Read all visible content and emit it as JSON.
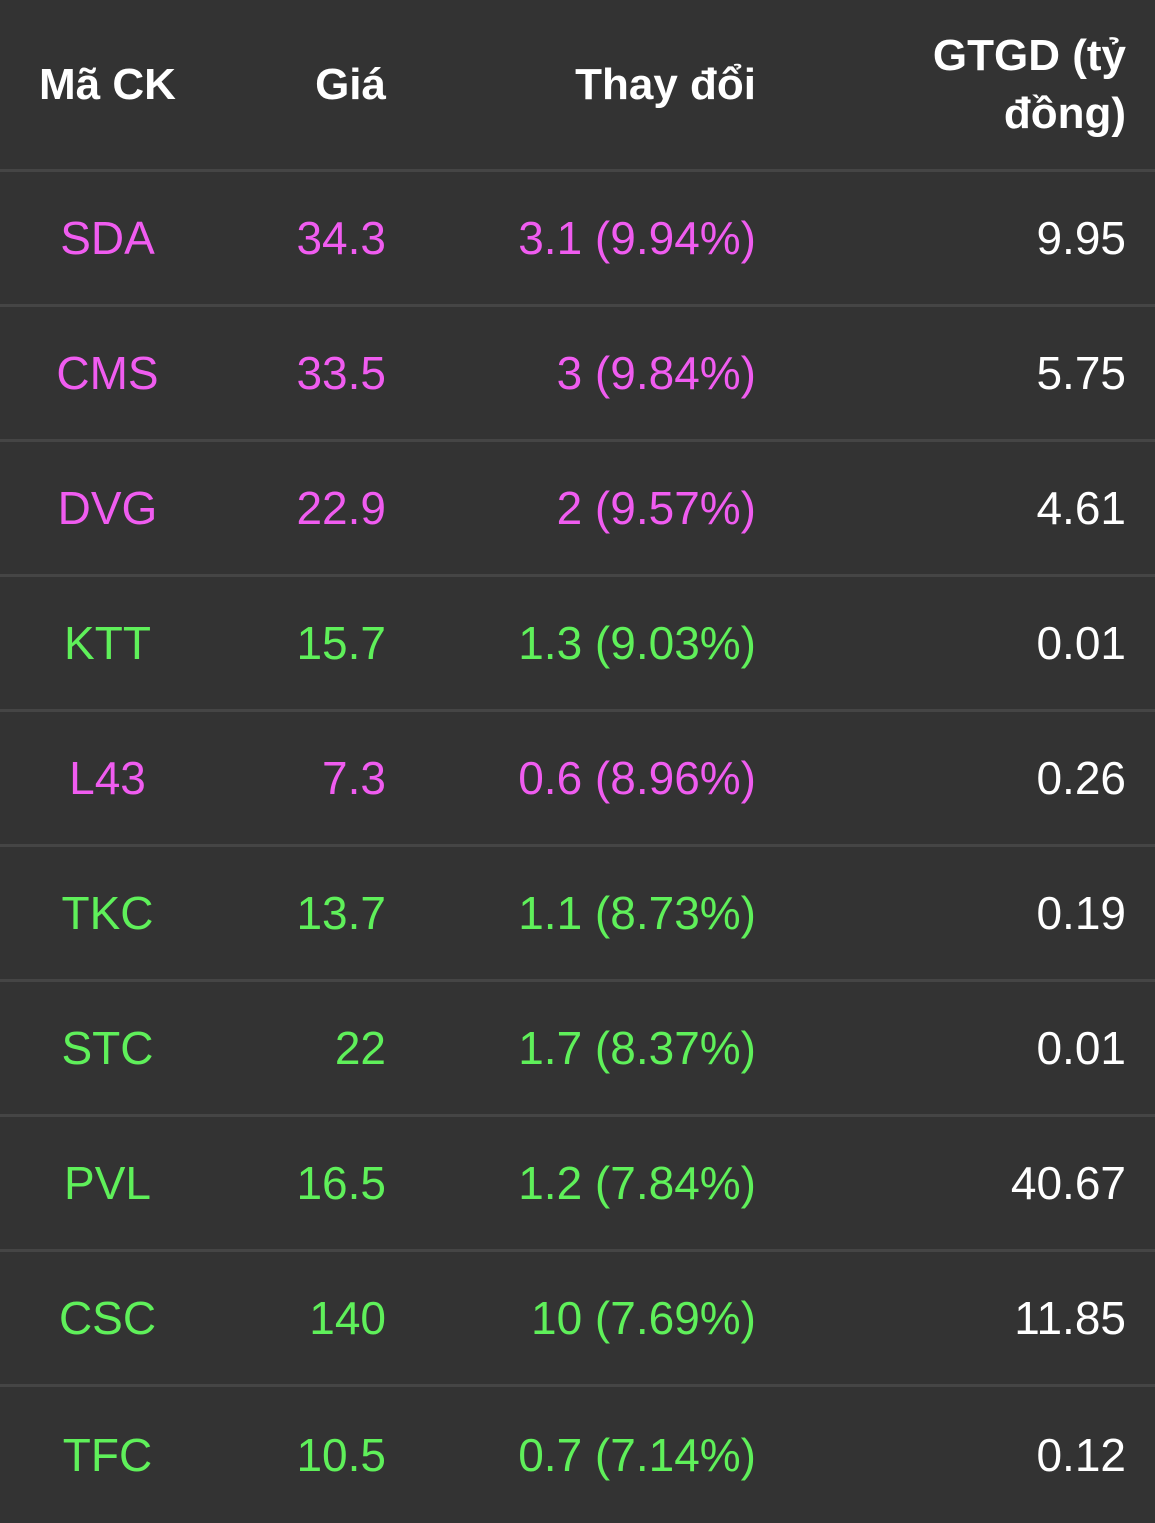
{
  "table": {
    "headers": {
      "symbol": "Mã CK",
      "price": "Giá",
      "change": "Thay đổi",
      "value": "GTGD (tỷ đồng)"
    },
    "colors": {
      "ceiling": "#f05cf0",
      "up": "#5ff05a",
      "neutral": "#ffffff",
      "background": "#333333",
      "divider": "#454545"
    },
    "rows": [
      {
        "symbol": "SDA",
        "price": "34.3",
        "change": "3.1 (9.94%)",
        "value": "9.95",
        "status": "ceiling"
      },
      {
        "symbol": "CMS",
        "price": "33.5",
        "change": "3 (9.84%)",
        "value": "5.75",
        "status": "ceiling"
      },
      {
        "symbol": "DVG",
        "price": "22.9",
        "change": "2 (9.57%)",
        "value": "4.61",
        "status": "ceiling"
      },
      {
        "symbol": "KTT",
        "price": "15.7",
        "change": "1.3 (9.03%)",
        "value": "0.01",
        "status": "up"
      },
      {
        "symbol": "L43",
        "price": "7.3",
        "change": "0.6 (8.96%)",
        "value": "0.26",
        "status": "ceiling"
      },
      {
        "symbol": "TKC",
        "price": "13.7",
        "change": "1.1 (8.73%)",
        "value": "0.19",
        "status": "up"
      },
      {
        "symbol": "STC",
        "price": "22",
        "change": "1.7 (8.37%)",
        "value": "0.01",
        "status": "up"
      },
      {
        "symbol": "PVL",
        "price": "16.5",
        "change": "1.2 (7.84%)",
        "value": "40.67",
        "status": "up"
      },
      {
        "symbol": "CSC",
        "price": "140",
        "change": "10 (7.69%)",
        "value": "11.85",
        "status": "up"
      },
      {
        "symbol": "TFC",
        "price": "10.5",
        "change": "0.7 (7.14%)",
        "value": "0.12",
        "status": "up"
      }
    ]
  }
}
